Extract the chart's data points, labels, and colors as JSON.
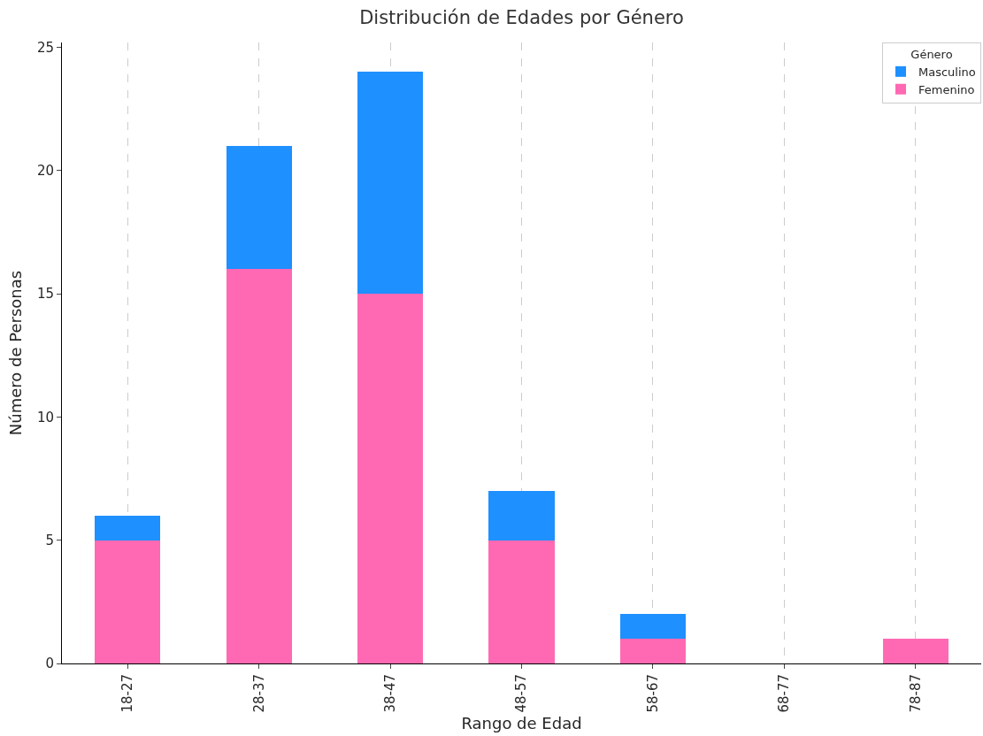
{
  "chart_data": {
    "type": "bar",
    "title": "Distribución de Edades por Género",
    "xlabel": "Rango de Edad",
    "ylabel": "Número de Personas",
    "legend_title": "Género",
    "categories": [
      "18-27",
      "28-37",
      "38-47",
      "48-57",
      "58-67",
      "68-77",
      "78-87"
    ],
    "series": [
      {
        "name": "Femenino",
        "color": "#ff69b4",
        "values": [
          5,
          16,
          15,
          5,
          1,
          0,
          1
        ]
      },
      {
        "name": "Masculino",
        "color": "#1e90ff",
        "values": [
          1,
          5,
          9,
          2,
          1,
          0,
          0
        ]
      }
    ],
    "stacked": true,
    "ylim": [
      0,
      25.2
    ],
    "yticks": [
      0,
      5,
      10,
      15,
      20,
      25
    ],
    "grid": "x",
    "legend": "top right"
  }
}
